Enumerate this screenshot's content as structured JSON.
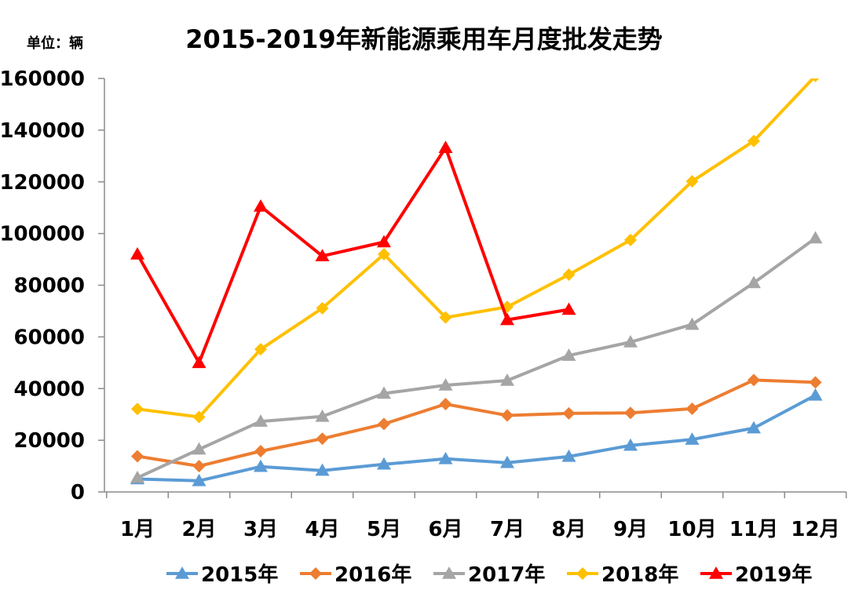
{
  "chart_data": {
    "type": "line",
    "title": "2015-2019年新能源乘用车月度批发走势",
    "unit_label": "单位：辆",
    "categories": [
      "1月",
      "2月",
      "3月",
      "4月",
      "5月",
      "6月",
      "7月",
      "8月",
      "9月",
      "10月",
      "11月",
      "12月"
    ],
    "ylim": [
      0,
      160000
    ],
    "yticks": [
      0,
      20000,
      40000,
      60000,
      80000,
      100000,
      120000,
      140000,
      160000
    ],
    "ytick_labels": [
      "0",
      "20000",
      "40000",
      "60000",
      "80000",
      "100000",
      "120000",
      "140000",
      "160000"
    ],
    "legend_position": "bottom",
    "grid": false,
    "series": [
      {
        "name": "2015年",
        "color": "#5B9BD5",
        "marker": "triangle",
        "values": [
          5000,
          4300,
          9800,
          8300,
          10700,
          12800,
          11300,
          13700,
          18000,
          20300,
          24700,
          37400
        ]
      },
      {
        "name": "2016年",
        "color": "#ED7D31",
        "marker": "diamond",
        "values": [
          13800,
          10000,
          15800,
          20600,
          26300,
          34000,
          29600,
          30400,
          30600,
          32200,
          43300,
          42400
        ]
      },
      {
        "name": "2017年",
        "color": "#A5A5A5",
        "marker": "triangle",
        "values": [
          5500,
          16500,
          27300,
          29200,
          38100,
          41300,
          43100,
          52800,
          58000,
          64800,
          80900,
          98200
        ]
      },
      {
        "name": "2018年",
        "color": "#FFC000",
        "marker": "diamond",
        "values": [
          32100,
          29000,
          55200,
          71100,
          92000,
          67500,
          71600,
          84100,
          97500,
          120200,
          135800,
          161000
        ]
      },
      {
        "name": "2019年",
        "color": "#FF0000",
        "marker": "triangle",
        "values": [
          92000,
          50000,
          110500,
          91300,
          96700,
          133200,
          66600,
          70600,
          null,
          null,
          null,
          null
        ]
      }
    ]
  }
}
